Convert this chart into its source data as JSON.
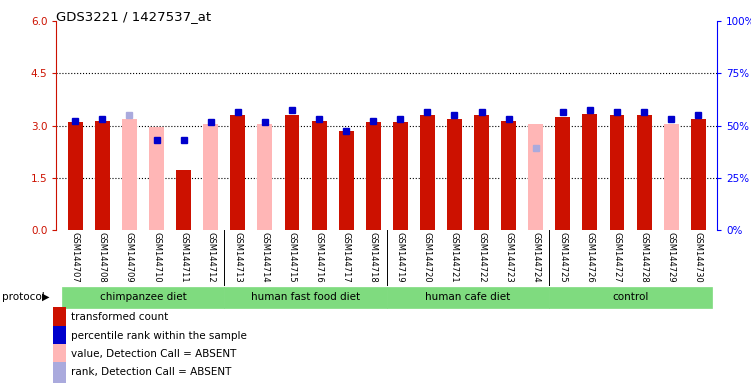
{
  "title": "GDS3221 / 1427537_at",
  "samples": [
    "GSM144707",
    "GSM144708",
    "GSM144709",
    "GSM144710",
    "GSM144711",
    "GSM144712",
    "GSM144713",
    "GSM144714",
    "GSM144715",
    "GSM144716",
    "GSM144717",
    "GSM144718",
    "GSM144719",
    "GSM144720",
    "GSM144721",
    "GSM144722",
    "GSM144723",
    "GSM144724",
    "GSM144725",
    "GSM144726",
    "GSM144727",
    "GSM144728",
    "GSM144729",
    "GSM144730"
  ],
  "transformed_count": [
    3.1,
    3.15,
    3.2,
    2.97,
    1.72,
    3.05,
    3.3,
    3.05,
    3.3,
    3.15,
    2.85,
    3.1,
    3.1,
    3.3,
    3.2,
    3.3,
    3.15,
    3.05,
    3.25,
    3.35,
    3.3,
    3.3,
    3.05,
    3.2
  ],
  "percentile_rank": [
    3.15,
    3.2,
    3.3,
    2.6,
    2.6,
    3.1,
    3.4,
    3.1,
    3.45,
    3.2,
    2.85,
    3.15,
    3.2,
    3.4,
    3.3,
    3.4,
    3.2,
    2.35,
    3.4,
    3.45,
    3.4,
    3.4,
    3.2,
    3.3
  ],
  "absent_value": [
    false,
    false,
    true,
    true,
    false,
    true,
    false,
    true,
    false,
    false,
    false,
    false,
    false,
    false,
    false,
    false,
    false,
    true,
    false,
    false,
    false,
    false,
    true,
    false
  ],
  "absent_rank": [
    false,
    false,
    true,
    false,
    false,
    false,
    false,
    false,
    false,
    false,
    false,
    false,
    false,
    false,
    false,
    false,
    false,
    true,
    false,
    false,
    false,
    false,
    false,
    false
  ],
  "groups": [
    {
      "label": "chimpanzee diet",
      "start": 0,
      "end": 6
    },
    {
      "label": "human fast food diet",
      "start": 6,
      "end": 12
    },
    {
      "label": "human cafe diet",
      "start": 12,
      "end": 18
    },
    {
      "label": "control",
      "start": 18,
      "end": 24
    }
  ],
  "ylim_left": [
    0,
    6
  ],
  "yticks_left": [
    0,
    1.5,
    3.0,
    4.5,
    6.0
  ],
  "ylim_right": [
    0,
    100
  ],
  "yticks_right": [
    0,
    25,
    50,
    75,
    100
  ],
  "bar_color_present": "#CC1100",
  "bar_color_absent": "#FFB6B6",
  "rank_color_present": "#0000CC",
  "rank_color_absent": "#AAAADD",
  "group_color": "#7FDB7F",
  "bar_width": 0.55,
  "legend_items": [
    {
      "color": "#CC1100",
      "label": "transformed count"
    },
    {
      "color": "#0000CC",
      "label": "percentile rank within the sample"
    },
    {
      "color": "#FFB6B6",
      "label": "value, Detection Call = ABSENT"
    },
    {
      "color": "#AAAADD",
      "label": "rank, Detection Call = ABSENT"
    }
  ]
}
